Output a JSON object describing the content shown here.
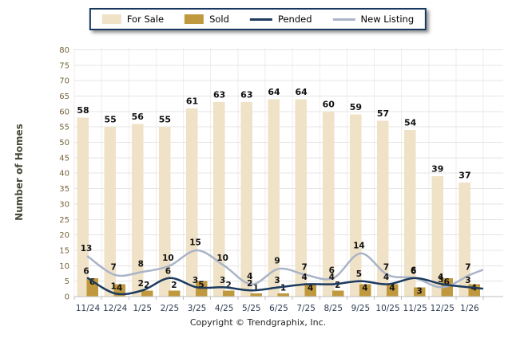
{
  "legend": {
    "items": [
      {
        "label": "For Sale",
        "type": "bar",
        "color": "#EFE2C6"
      },
      {
        "label": "Sold",
        "type": "bar",
        "color": "#C0983E"
      },
      {
        "label": "Pended",
        "type": "line",
        "color": "#1C3A5E"
      },
      {
        "label": "New Listing",
        "type": "line",
        "color": "#AAB4C8"
      }
    ]
  },
  "y_axis": {
    "label": "Number of Homes",
    "min": 0,
    "max": 80,
    "step": 5
  },
  "footer": {
    "text": "Copyright © Trendgraphix, Inc."
  },
  "chart_data": {
    "type": "combo",
    "categories": [
      "11/24",
      "12/24",
      "1/25",
      "2/25",
      "3/25",
      "4/25",
      "5/25",
      "6/25",
      "7/25",
      "8/25",
      "9/25",
      "10/25",
      "11/25",
      "12/25",
      "1/26"
    ],
    "series": [
      {
        "name": "For Sale",
        "type": "bar",
        "color": "#EFE2C6",
        "values": [
          58,
          55,
          56,
          55,
          61,
          63,
          63,
          64,
          64,
          60,
          59,
          57,
          54,
          39,
          37
        ]
      },
      {
        "name": "Sold",
        "type": "bar",
        "color": "#C0983E",
        "values": [
          6,
          4,
          2,
          2,
          5,
          2,
          1,
          1,
          4,
          2,
          4,
          4,
          3,
          6,
          4
        ]
      },
      {
        "name": "Pended",
        "type": "line",
        "color": "#1C3A5E",
        "values": [
          6,
          1,
          2,
          6,
          3,
          3,
          2,
          3,
          4,
          4,
          5,
          4,
          6,
          4,
          3
        ]
      },
      {
        "name": "New Listing",
        "type": "line",
        "color": "#AAB4C8",
        "values": [
          13,
          7,
          8,
          10,
          15,
          10,
          4,
          9,
          7,
          6,
          14,
          7,
          6,
          3,
          7
        ]
      }
    ],
    "title": "",
    "xlabel": "",
    "ylabel": "Number of Homes",
    "ylim": [
      0,
      80
    ],
    "ystep": 5,
    "grid": true,
    "legend_position": "top"
  },
  "style": {
    "grid_color": "#E4E4E4",
    "vgrid_color": "#EFEEE9",
    "axis_color": "#BDBDBD",
    "y_tick_color": "#75653B",
    "x_tick_color": "#2E3B52",
    "value_label_color": "#111111",
    "legend_border": "#17375E"
  }
}
